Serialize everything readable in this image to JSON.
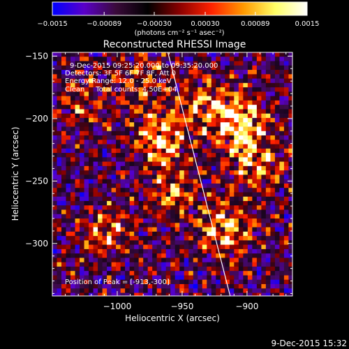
{
  "chart_data": {
    "type": "heatmap",
    "title": "Reconstructed RHESSI Image",
    "xlabel": "Heliocentric X (arcsec)",
    "ylabel": "Heliocentric Y (arcsec)",
    "xlim": [
      -1050,
      -865
    ],
    "ylim": [
      -342,
      -147
    ],
    "xticks": [
      -1000,
      -950,
      -900
    ],
    "yticks": [
      -150,
      -200,
      -250,
      -300
    ],
    "xtick_labels": [
      "−1000",
      "−950",
      "−900"
    ],
    "ytick_labels": [
      "−150",
      "−200",
      "−250",
      "−300"
    ],
    "colorbar": {
      "min": -0.0015,
      "max": 0.0015,
      "ticks": [
        -0.0015,
        -0.00089,
        -0.0003,
        0.0003,
        0.00089,
        0.0015
      ],
      "tick_labels": [
        "−0.0015",
        "−0.00089",
        "−0.00030",
        "0.00030",
        "0.00089",
        "0.0015"
      ],
      "unit_label": "(photons cm⁻² s⁻¹ asec⁻²)",
      "colors": [
        "#0000ff",
        "#5a00c8",
        "#3a0a3a",
        "#000000",
        "#8a0000",
        "#ff2200",
        "#ff9900",
        "#ffff66",
        "#ffffff"
      ]
    },
    "annotations": {
      "time_range": "9-Dec-2015 09:25:20.000 to 09:35:20.000",
      "detectors": "Detectors: 3F 5F 6F 7F 8F, Att 0",
      "energy": "Energy Range: 12.0 - 25.0 keV",
      "method": "Clean     Total counts: 4.50E+04",
      "peak": "Position of Peak = [-913,-300]"
    },
    "peak_position": [
      -913,
      -300
    ],
    "limb_line": {
      "x": [
        -961,
        -913
      ],
      "y": [
        -147,
        -342
      ]
    },
    "grid": false,
    "bright_regions": [
      {
        "x": -905,
        "y": -205,
        "level": 1.0
      },
      {
        "x": -965,
        "y": -215,
        "level": 0.9
      },
      {
        "x": -930,
        "y": -185,
        "level": 0.6
      },
      {
        "x": -895,
        "y": -238,
        "level": 0.7
      },
      {
        "x": -918,
        "y": -288,
        "level": 0.9
      },
      {
        "x": -960,
        "y": -260,
        "level": 0.6
      },
      {
        "x": -1025,
        "y": -188,
        "level": 0.45
      },
      {
        "x": -1010,
        "y": -292,
        "level": 0.6
      },
      {
        "x": -980,
        "y": -170,
        "level": 0.5
      }
    ]
  },
  "footer": {
    "timestamp": "9-Dec-2015 15:32"
  }
}
